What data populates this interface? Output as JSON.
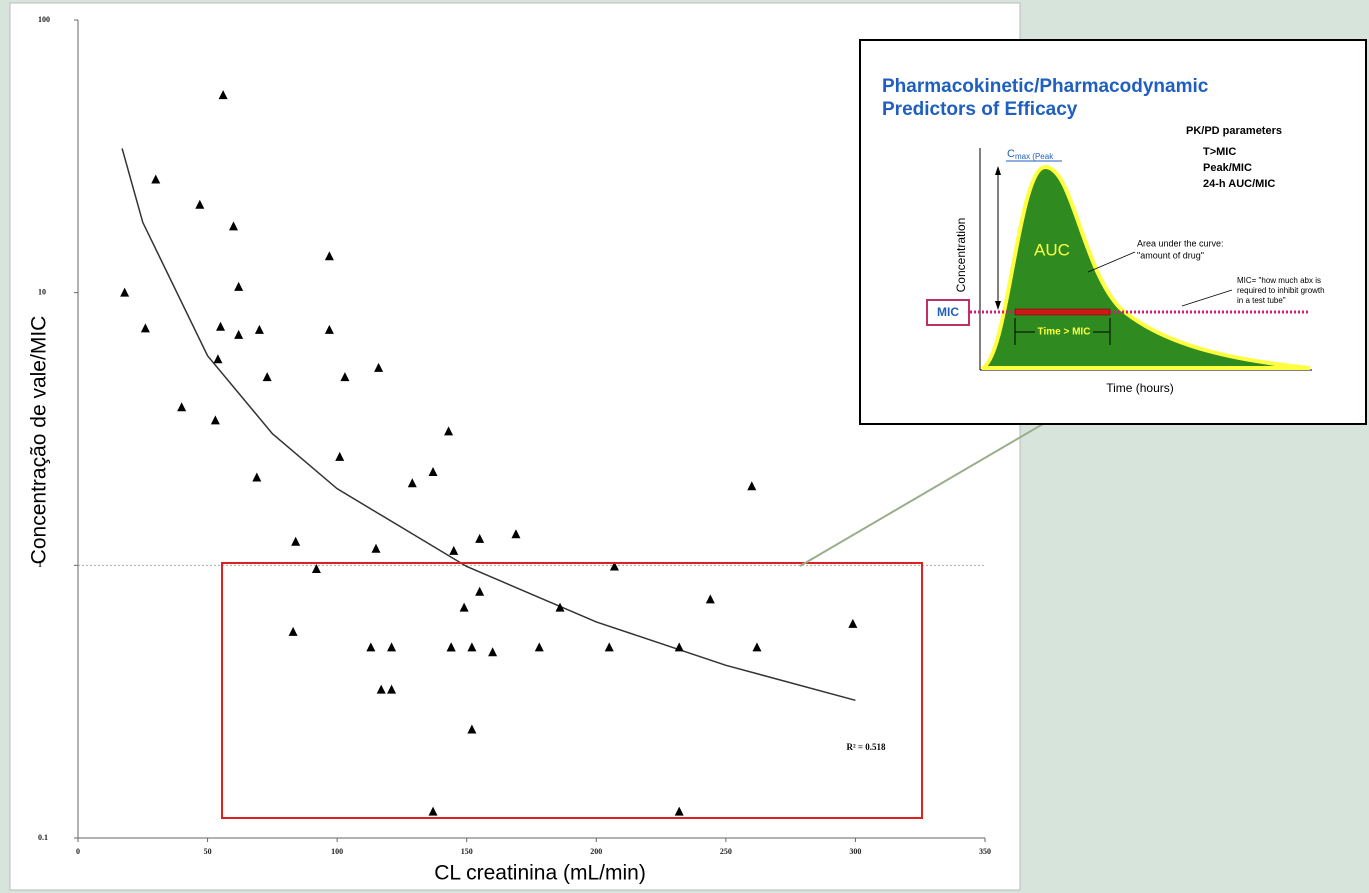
{
  "chart_data": {
    "type": "scatter",
    "x_label": "CL creatinina (mL/min)",
    "y_label": "Concentração de vale/MIC",
    "color": "#000000",
    "x": [
      18,
      26,
      30,
      40,
      47,
      53,
      54,
      55,
      56,
      60,
      62,
      62,
      69,
      70,
      73,
      83,
      84,
      92,
      97,
      97,
      101,
      103,
      113,
      115,
      116,
      117,
      121,
      121,
      129,
      137,
      137,
      143,
      144,
      144,
      145,
      149,
      152,
      152,
      155,
      155,
      160,
      169,
      178,
      186,
      205,
      207,
      232,
      232,
      244,
      260,
      262,
      299
    ],
    "values": [
      10,
      7.4,
      26,
      3.8,
      21,
      3.4,
      5.7,
      7.5,
      53,
      17.5,
      10.5,
      7.0,
      2.1,
      7.3,
      4.9,
      0.57,
      1.22,
      0.97,
      13.6,
      7.3,
      2.5,
      4.9,
      0.5,
      1.15,
      5.3,
      0.35,
      0.5,
      0.35,
      2.0,
      2.2,
      0.125,
      3.1,
      0.5,
      0.5,
      1.13,
      0.7,
      0.25,
      0.5,
      1.25,
      0.8,
      0.48,
      1.3,
      0.5,
      0.7,
      0.5,
      0.99,
      0.5,
      0.125,
      0.75,
      1.95,
      0.5,
      0.61
    ],
    "trend": {
      "color": "#333333",
      "x": [
        17,
        25,
        50,
        75,
        100,
        150,
        200,
        250,
        300
      ],
      "values": [
        33.8,
        18.1,
        5.87,
        3.04,
        1.91,
        0.99,
        0.62,
        0.43,
        0.32
      ]
    },
    "reference_line": 1,
    "annotation": "R² = 0.518",
    "xlim": [
      0,
      350
    ],
    "ylim": [
      0.1,
      100
    ],
    "log_y": true,
    "xticks": [
      0,
      50,
      100,
      150,
      200,
      250,
      300,
      350
    ],
    "yticks": [
      0.1,
      1,
      10,
      100
    ]
  },
  "inset": {
    "title_lines": [
      "Pharmacokinetic/Pharmacodynamic",
      "Predictors of Efficacy"
    ],
    "parameters_heading": "PK/PD parameters",
    "parameters": [
      "T>MIC",
      "Peak/MIC",
      "24-h AUC/MIC"
    ],
    "cmax": "C",
    "cmax_sub": "max (Peak",
    "y_label": "Concentration",
    "x_label": "Time (hours)",
    "auc": "AUC",
    "auc_note": [
      "Area under the curve:",
      "\"amount of drug\""
    ],
    "mic_note": [
      "MIC= \"how much abx is",
      "required to inhibit growth",
      "in a test tube\""
    ],
    "mic": "MIC",
    "time_mic": "Time > MIC"
  }
}
